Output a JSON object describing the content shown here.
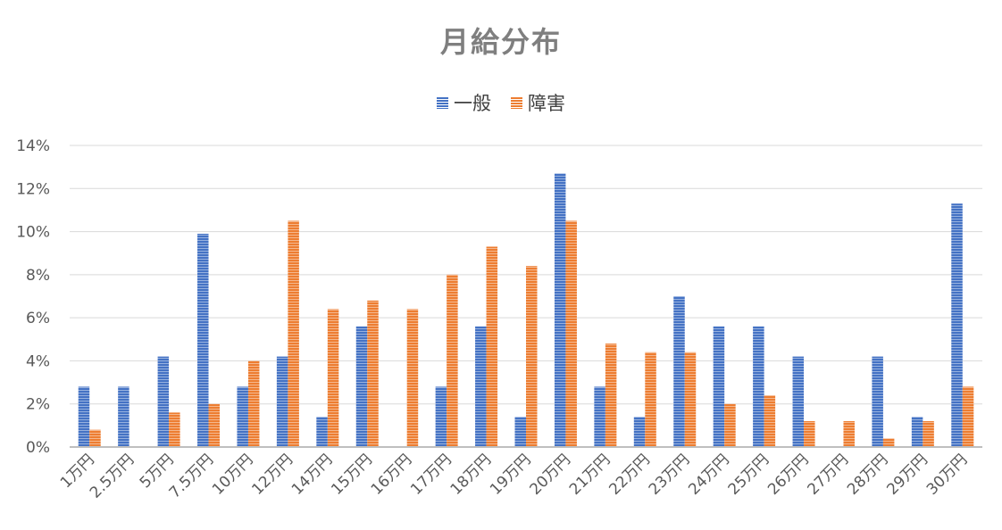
{
  "chart_data": {
    "type": "bar",
    "title": "月給分布",
    "categories": [
      "1万円",
      "2.5万円",
      "5万円",
      "7.5万円",
      "10万円",
      "12万円",
      "14万円",
      "15万円",
      "16万円",
      "17万円",
      "18万円",
      "19万円",
      "20万円",
      "21万円",
      "22万円",
      "23万円",
      "24万円",
      "25万円",
      "26万円",
      "27万円",
      "28万円",
      "29万円",
      "30万円"
    ],
    "series": [
      {
        "name": "一般",
        "color": "#4472c4",
        "values": [
          2.8,
          2.8,
          4.2,
          9.9,
          2.8,
          4.2,
          1.4,
          5.6,
          0,
          2.8,
          5.6,
          1.4,
          12.7,
          2.8,
          1.4,
          7.0,
          5.6,
          5.6,
          4.2,
          0,
          4.2,
          1.4,
          11.3
        ]
      },
      {
        "name": "障害",
        "color": "#ed7d31",
        "values": [
          0.8,
          0,
          1.6,
          2.0,
          4.0,
          10.5,
          6.4,
          6.8,
          6.4,
          8.0,
          9.3,
          8.4,
          10.5,
          4.8,
          4.4,
          4.4,
          2.0,
          2.4,
          1.2,
          1.2,
          0.4,
          1.2,
          2.8
        ]
      }
    ],
    "ylim": [
      0,
      14
    ],
    "yticks": [
      "0%",
      "2%",
      "4%",
      "6%",
      "8%",
      "10%",
      "12%",
      "14%"
    ],
    "ytick_values": [
      0,
      2,
      4,
      6,
      8,
      10,
      12,
      14
    ],
    "grid": true,
    "legend_position": "top"
  }
}
